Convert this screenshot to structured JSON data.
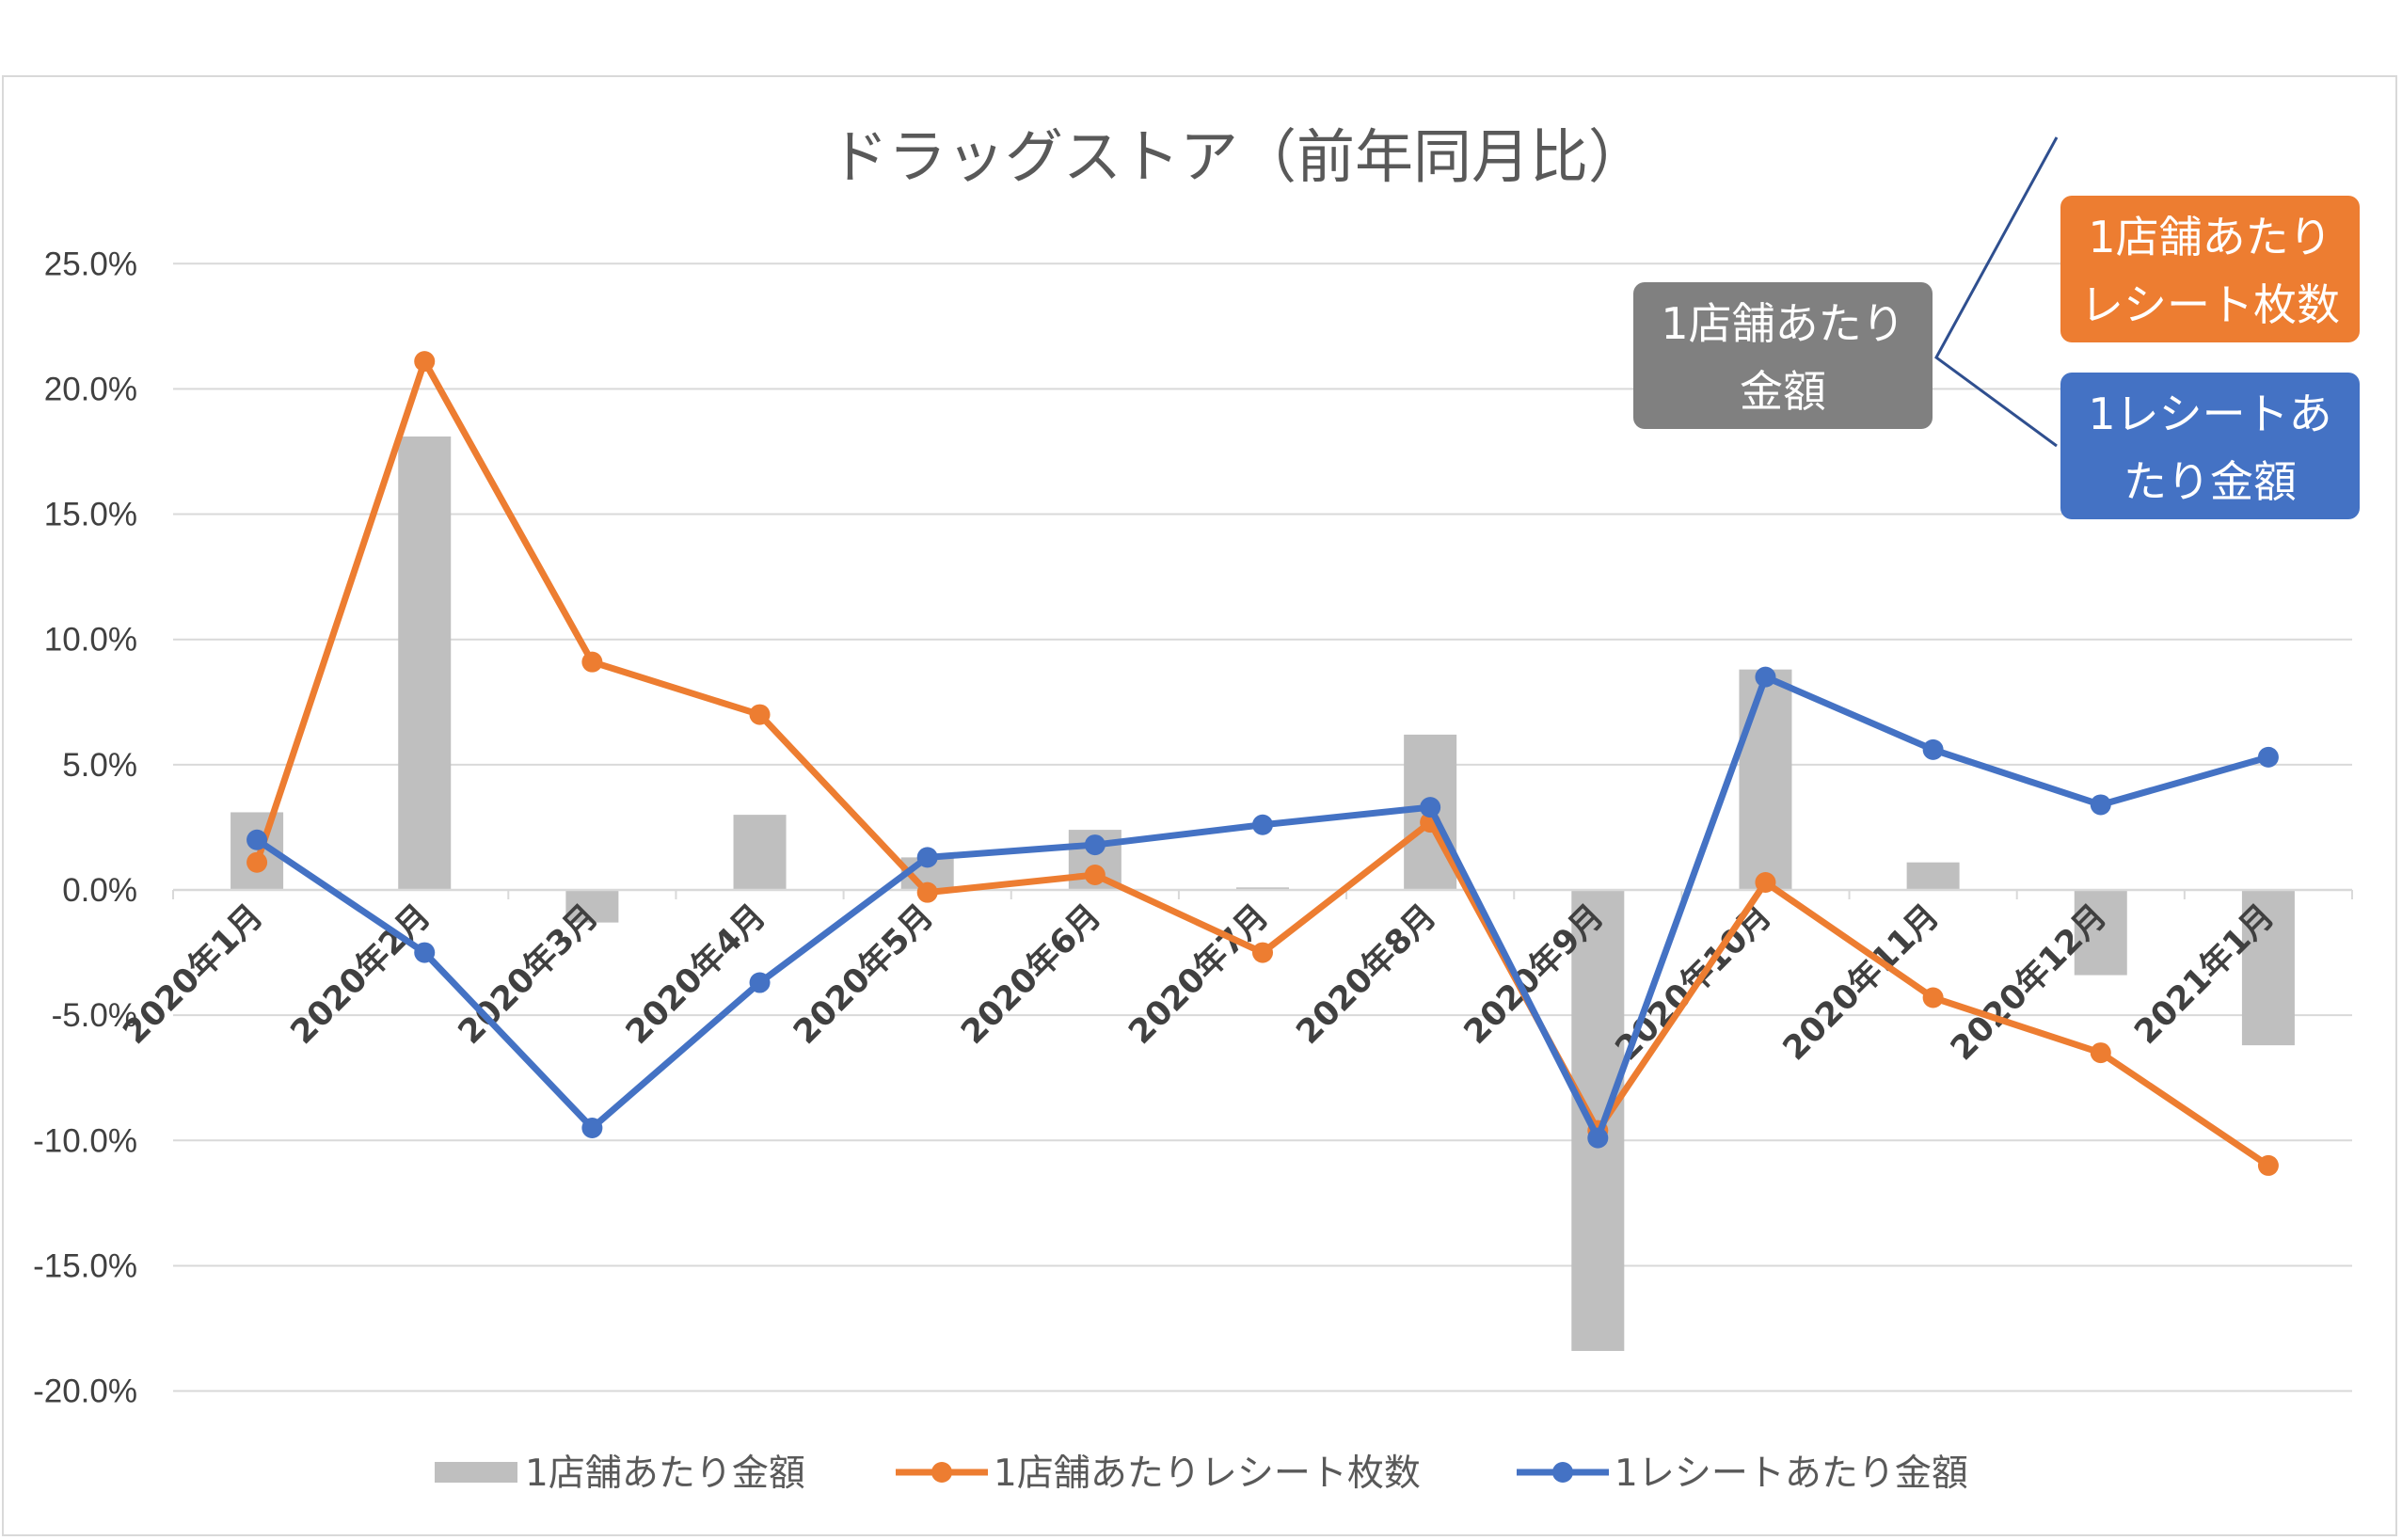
{
  "colors": {
    "bar": "#bfbfbf",
    "orange": "#ed7d31",
    "blue": "#4472c4",
    "gray_callout": "#808080",
    "grid": "#d9d9d9",
    "connector": "#2f4f8f"
  },
  "chart_data": {
    "type": "bar",
    "title": "ドラッグストア（前年同月比）",
    "categories": [
      "2020年1月",
      "2020年2月",
      "2020年3月",
      "2020年4月",
      "2020年5月",
      "2020年6月",
      "2020年7月",
      "2020年8月",
      "2020年9月",
      "2020年10月",
      "2020年11月",
      "2020年12月",
      "2021年1月"
    ],
    "ylim": [
      -20,
      25
    ],
    "yticks": [
      25,
      20,
      15,
      10,
      5,
      0,
      -5,
      -10,
      -15,
      -20
    ],
    "ytick_labels": [
      "25.0%",
      "20.0%",
      "15.0%",
      "10.0%",
      "5.0%",
      "0.0%",
      "-5.0%",
      "-10.0%",
      "-15.0%",
      "-20.0%"
    ],
    "grid": true,
    "legend_position": "bottom",
    "series": [
      {
        "name": "1店舗あたり金額",
        "type": "bar",
        "color": "#bfbfbf",
        "values": [
          3.1,
          18.1,
          -1.3,
          3.0,
          1.3,
          2.4,
          0.1,
          6.2,
          -18.4,
          8.8,
          1.1,
          -3.4,
          -6.2
        ]
      },
      {
        "name": "1店舗あたりレシート枚数",
        "type": "line",
        "color": "#ed7d31",
        "values": [
          1.1,
          21.1,
          9.1,
          7.0,
          -0.1,
          0.6,
          -2.5,
          2.7,
          -9.6,
          0.3,
          -4.3,
          -6.5,
          -11.0
        ]
      },
      {
        "name": "1レシートあたり金額",
        "type": "line",
        "color": "#4472c4",
        "values": [
          2.0,
          -2.5,
          -9.5,
          -3.7,
          1.3,
          1.8,
          2.6,
          3.3,
          -9.9,
          8.5,
          5.6,
          3.4,
          5.3
        ]
      }
    ],
    "annotations": {
      "gray_box": [
        "1店舗あたり",
        "金額"
      ],
      "orange_box": [
        "1店舗あたり",
        "レシート枚数"
      ],
      "blue_box": [
        "1レシートあ",
        "たり金額"
      ]
    }
  }
}
